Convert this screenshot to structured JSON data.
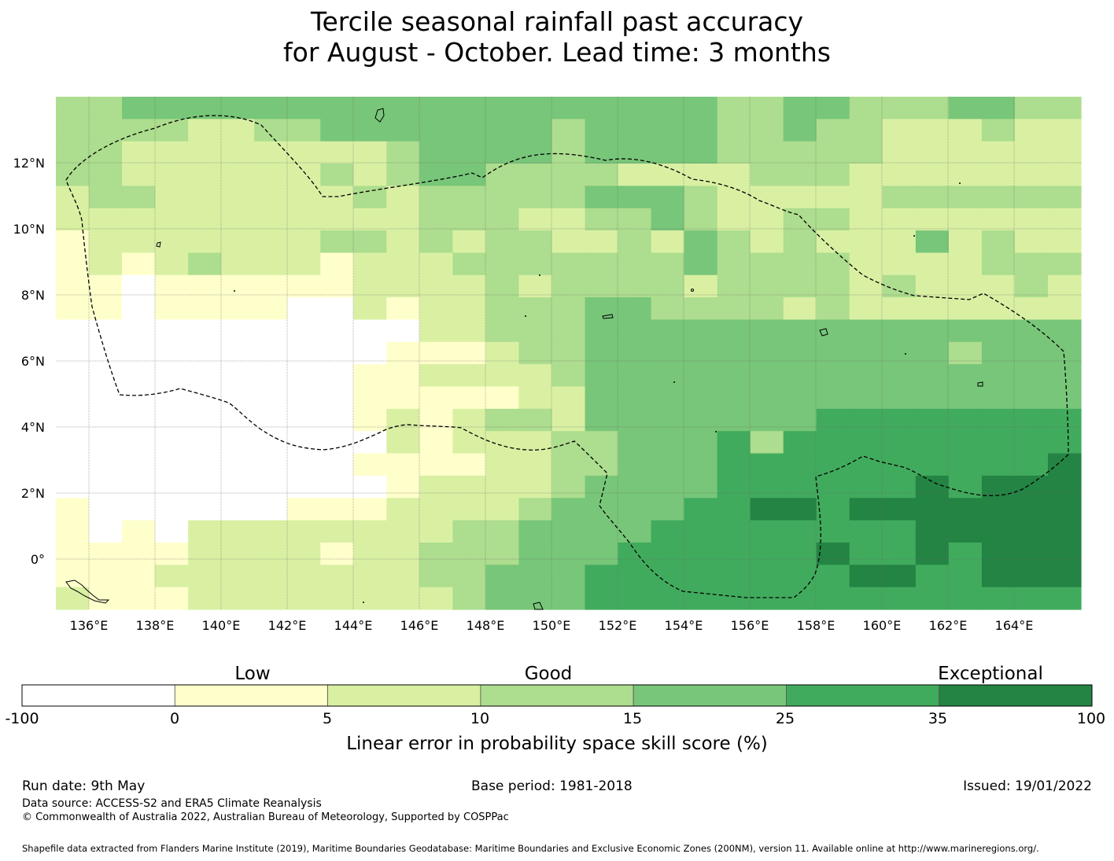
{
  "title": {
    "line1": "Tercile seasonal rainfall past accuracy",
    "line2": "for August - October. Lead time: 3 months"
  },
  "map": {
    "x_ticks": [
      "136°E",
      "138°E",
      "140°E",
      "142°E",
      "144°E",
      "146°E",
      "148°E",
      "150°E",
      "152°E",
      "154°E",
      "156°E",
      "158°E",
      "160°E",
      "162°E",
      "164°E"
    ],
    "y_ticks": [
      "12°N",
      "10°N",
      "8°N",
      "6°N",
      "4°N",
      "2°N",
      "0°"
    ],
    "lon_range": [
      135,
      166
    ],
    "lat_range": [
      -1.5,
      14
    ],
    "grid": true
  },
  "colorbar": {
    "boundaries": [
      "-100",
      "0",
      "5",
      "10",
      "15",
      "25",
      "35",
      "100"
    ],
    "colors": [
      "#ffffff",
      "#ffffcc",
      "#d9f0a3",
      "#addd8e",
      "#78c679",
      "#41ab5d",
      "#238443"
    ],
    "categories": [
      "Low",
      "Good",
      "Exceptional"
    ],
    "axis_label": "Linear error in probability space skill score (%)"
  },
  "footer": {
    "run_date": "Run date: 9th May",
    "base_period": "Base period: 1981-2018",
    "issued": "Issued: 19/01/2022",
    "data_source": "Data source: ACCESS-S2 and ERA5 Climate Reanalysis",
    "copyright": "© Commonwealth of Australia 2022, Australian Bureau of Meteorology, Supported by COSPPac",
    "shapefile": "Shapefile data extracted from Flanders Marine Institute (2019), Maritime Boundaries Geodatabase: Maritime Boundaries and Exclusive Economic Zones (200NM), version 11. Available online at http://www.marineregions.org/."
  }
}
